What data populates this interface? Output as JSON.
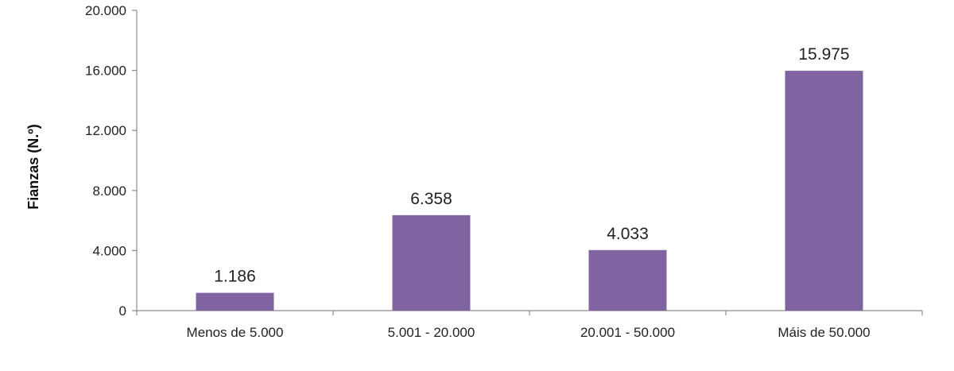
{
  "chart_data": {
    "type": "bar",
    "title": "",
    "xlabel": "",
    "ylabel": "Fianzas (N.º)",
    "categories": [
      "Menos de 5.000",
      "5.001 - 20.000",
      "20.001 - 50.000",
      "Máis de 50.000"
    ],
    "values": [
      1186,
      6358,
      4033,
      15975
    ],
    "value_labels": [
      "1.186",
      "6.358",
      "4.033",
      "15.975"
    ],
    "ylim": [
      0,
      20000
    ],
    "yticks": [
      0,
      4000,
      8000,
      12000,
      16000,
      20000
    ],
    "ytick_labels": [
      "0",
      "4.000",
      "8.000",
      "12.000",
      "16.000",
      "20.000"
    ],
    "bar_color": "#8064a2",
    "grid": false,
    "legend": "none"
  }
}
